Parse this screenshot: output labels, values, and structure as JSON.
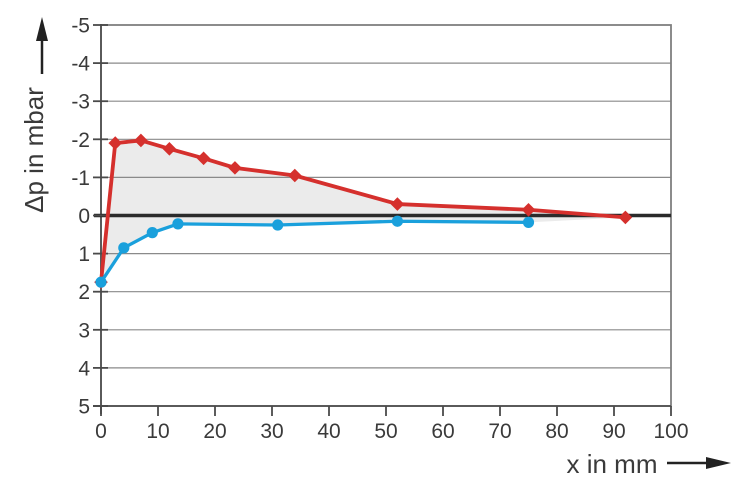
{
  "chart_data": {
    "type": "line",
    "title": "",
    "xlabel": "x in mm",
    "ylabel": "Δp in mbar",
    "xlim": [
      0,
      100
    ],
    "ylim": [
      -5,
      5
    ],
    "y_axis_inverted": true,
    "x_ticks": [
      0,
      10,
      20,
      30,
      40,
      50,
      60,
      70,
      80,
      90,
      100
    ],
    "y_ticks": [
      -5,
      -4,
      -3,
      -2,
      -1,
      0,
      1,
      2,
      3,
      4,
      5
    ],
    "grid": "horizontal-only",
    "legend": "none",
    "zero_line": {
      "value": 0,
      "color": "#2b2b2b"
    },
    "fill_between_series_color": "#ebebeb",
    "series": [
      {
        "name": "red-diamond-series",
        "color": "#d5302d",
        "marker": "diamond",
        "points": [
          [
            0,
            1.75
          ],
          [
            2.5,
            -1.9
          ],
          [
            7,
            -1.97
          ],
          [
            12,
            -1.75
          ],
          [
            18,
            -1.5
          ],
          [
            23.5,
            -1.25
          ],
          [
            34,
            -1.05
          ],
          [
            52,
            -0.3
          ],
          [
            75,
            -0.15
          ],
          [
            92,
            0.05
          ]
        ]
      },
      {
        "name": "blue-circle-series",
        "color": "#1aa0dc",
        "marker": "circle",
        "points": [
          [
            0,
            1.75
          ],
          [
            4,
            0.85
          ],
          [
            9,
            0.45
          ],
          [
            13.5,
            0.22
          ],
          [
            31,
            0.25
          ],
          [
            52,
            0.15
          ],
          [
            75,
            0.18
          ]
        ]
      }
    ],
    "colors": {
      "grid": "#8a8a8a",
      "border": "#808080",
      "axis": "#5a5a5a",
      "tick": "#4a4a4a",
      "text": "#3a3a3a",
      "background": "#ffffff"
    }
  }
}
